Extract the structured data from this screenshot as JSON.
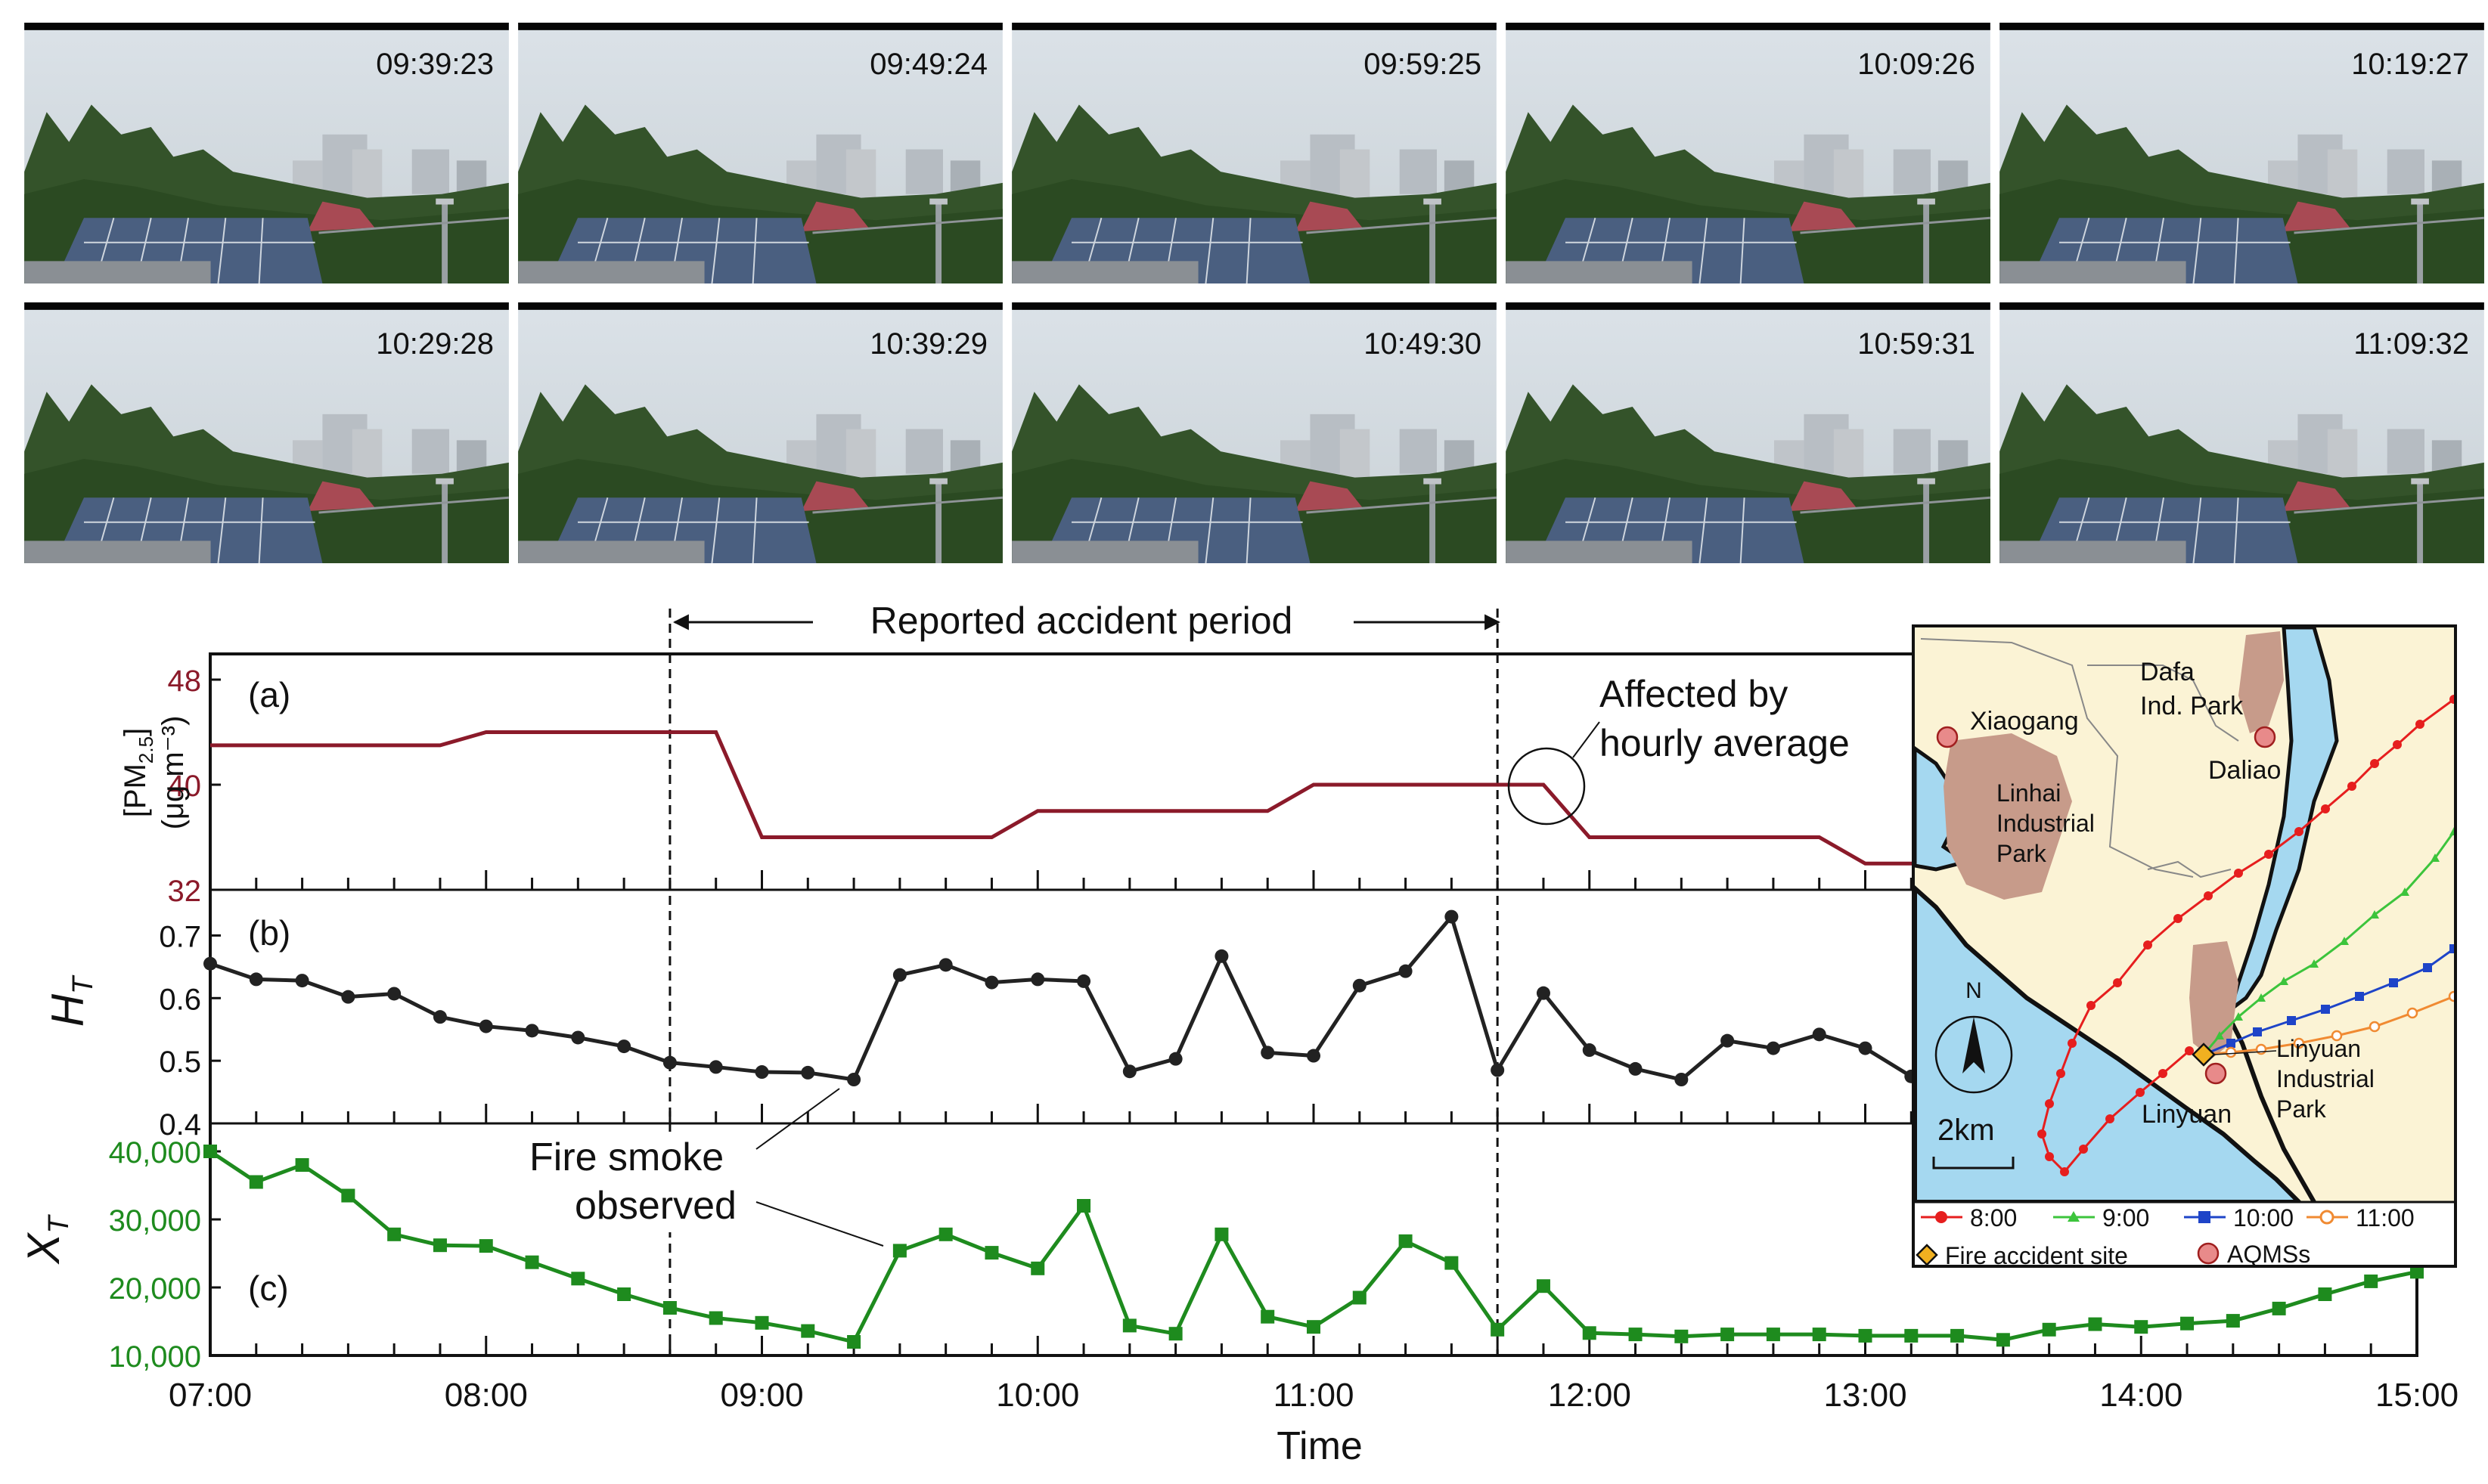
{
  "photos": {
    "timestamps": [
      "09:39:23",
      "09:49:24",
      "09:59:25",
      "10:09:26",
      "10:19:27",
      "10:29:28",
      "10:39:29",
      "10:49:30",
      "10:59:31",
      "11:09:32"
    ]
  },
  "annotations": {
    "accident_period": "Reported accident period",
    "hourly_average_line1": "Affected by",
    "hourly_average_line2": "hourly average",
    "fire_smoke_line1": "Fire smoke",
    "fire_smoke_line2": "observed"
  },
  "panels": {
    "a_label": "(a)",
    "b_label": "(b)",
    "c_label": "(c)",
    "a_ylabel_top": "[PM2.5]",
    "a_ylabel_bottom": "(μg m⁻³)",
    "b_ylabel": "H_T",
    "c_ylabel": "X_T",
    "xlabel": "Time"
  },
  "colors": {
    "pm25": "#8b1a2a",
    "ht": "#222222",
    "xt": "#1e8b1e",
    "sea": "#a5d8f0",
    "land": "#fbf3d5",
    "park": "#c79b8a"
  },
  "chart_data": [
    {
      "type": "line",
      "panel": "(a)",
      "ylabel": "[PM2.5] (μg m⁻³)",
      "ylim": [
        32,
        48
      ],
      "yticks": [
        32,
        40,
        48
      ],
      "x": [
        "07:00",
        "07:50",
        "08:00",
        "08:50",
        "09:00",
        "09:50",
        "10:00",
        "10:50",
        "11:00",
        "11:50",
        "12:00",
        "12:50",
        "13:00",
        "13:50",
        "14:00",
        "15:00"
      ],
      "values": [
        43,
        43,
        44,
        44,
        36,
        36,
        38,
        38,
        40,
        40,
        36,
        36,
        34,
        34,
        34,
        34
      ]
    },
    {
      "type": "line",
      "panel": "(b)",
      "ylabel": "H_T",
      "ylim": [
        0.4,
        0.75
      ],
      "yticks": [
        0.4,
        0.5,
        0.6,
        0.7
      ],
      "x": [
        "07:00",
        "07:10",
        "07:20",
        "07:30",
        "07:40",
        "07:50",
        "08:00",
        "08:10",
        "08:20",
        "08:30",
        "08:40",
        "08:50",
        "09:00",
        "09:10",
        "09:20",
        "09:30",
        "09:40",
        "09:50",
        "10:00",
        "10:10",
        "10:20",
        "10:30",
        "10:40",
        "10:50",
        "11:00",
        "11:10",
        "11:20",
        "11:30",
        "11:40",
        "11:50",
        "12:00",
        "12:10",
        "12:20",
        "12:30",
        "12:40",
        "12:50",
        "13:00",
        "13:10"
      ],
      "values": [
        0.655,
        0.63,
        0.628,
        0.602,
        0.607,
        0.57,
        0.555,
        0.548,
        0.537,
        0.523,
        0.497,
        0.49,
        0.482,
        0.481,
        0.47,
        0.637,
        0.653,
        0.625,
        0.63,
        0.627,
        0.483,
        0.503,
        0.667,
        0.513,
        0.508,
        0.62,
        0.643,
        0.73,
        0.485,
        0.608,
        0.517,
        0.487,
        0.47,
        0.532,
        0.52,
        0.542,
        0.52,
        0.475
      ]
    },
    {
      "type": "line",
      "panel": "(c)",
      "ylabel": "X_T",
      "ylim": [
        10000,
        40000
      ],
      "yticks": [
        10000,
        20000,
        30000,
        40000
      ],
      "ytick_labels": [
        "10,000",
        "20,000",
        "30,000",
        "40,000"
      ],
      "xlabel": "Time",
      "xticks": [
        "07:00",
        "08:00",
        "09:00",
        "10:00",
        "11:00",
        "12:00",
        "13:00",
        "14:00",
        "15:00"
      ],
      "x": [
        "07:00",
        "07:10",
        "07:20",
        "07:30",
        "07:40",
        "07:50",
        "08:00",
        "08:10",
        "08:20",
        "08:30",
        "08:40",
        "08:50",
        "09:00",
        "09:10",
        "09:20",
        "09:30",
        "09:40",
        "09:50",
        "10:00",
        "10:10",
        "10:20",
        "10:30",
        "10:40",
        "10:50",
        "11:00",
        "11:10",
        "11:20",
        "11:30",
        "11:40",
        "11:50",
        "12:00",
        "12:10",
        "12:20",
        "12:30",
        "12:40",
        "12:50",
        "13:00",
        "13:10",
        "13:20",
        "13:30",
        "13:40",
        "13:50",
        "14:00",
        "14:10",
        "14:20",
        "14:30",
        "14:40",
        "14:50",
        "15:00"
      ],
      "values": [
        40000,
        35500,
        38000,
        33500,
        27800,
        26200,
        26100,
        23700,
        21300,
        19000,
        17000,
        15500,
        14800,
        13600,
        12000,
        25400,
        27800,
        25100,
        22800,
        32000,
        14400,
        13200,
        27800,
        15700,
        14200,
        18500,
        26800,
        23600,
        13800,
        20200,
        13300,
        13100,
        12800,
        13100,
        13100,
        13100,
        12900,
        12900,
        12900,
        12300,
        13800,
        14600,
        14200,
        14700,
        15100,
        16900,
        19000,
        20900,
        22300
      ]
    }
  ],
  "accident_period": {
    "start": "08:40",
    "end": "11:40"
  },
  "map": {
    "places": [
      "Xiaogang",
      "Dafa Ind. Park",
      "Daliao",
      "Linhai Industrial Park",
      "Linyuan Industrial Park",
      "Linyuan"
    ],
    "north": "N",
    "scale": "2km",
    "legend": [
      "8:00",
      "9:00",
      "10:00",
      "11:00"
    ],
    "legend_colors": [
      "#e61e1e",
      "#3cc43c",
      "#1e44c8",
      "#f08a32"
    ],
    "legend_site": "Fire accident site",
    "legend_aqms": "AQMSs"
  }
}
